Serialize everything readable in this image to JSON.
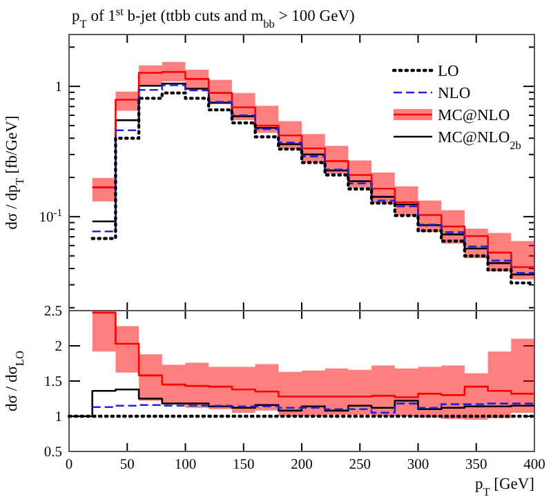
{
  "chart_data": [
    {
      "type": "step",
      "title": "p$_{T}$ of 1$^{st}$ b-jet (ttbb cuts and m$_{bb}$ > 100 GeV)",
      "ylabel": "dσ / dp$_{T}$ [fb/GeV]",
      "log": true,
      "legend": "top right",
      "tick_labels": "y",
      "x": [
        20,
        40,
        60,
        80,
        100,
        120,
        140,
        160,
        180,
        200,
        220,
        240,
        260,
        280,
        300,
        320,
        340,
        360,
        380,
        400
      ],
      "xlim": [
        0,
        400
      ],
      "xticks": [
        0,
        50,
        100,
        150,
        200,
        250,
        300,
        350,
        400
      ],
      "ylim": [
        0.019,
        2.5
      ],
      "yticks": [
        {
          "value": 0.02,
          "label": null
        },
        {
          "value": 0.03,
          "label": null
        },
        {
          "value": 0.04,
          "label": null
        },
        {
          "value": 0.05,
          "label": null
        },
        {
          "value": 0.06,
          "label": null
        },
        {
          "value": 0.07,
          "label": null
        },
        {
          "value": 0.08,
          "label": null
        },
        {
          "value": 0.09,
          "label": null
        },
        {
          "value": 0.1,
          "label": "10$^{-1}$"
        },
        {
          "value": 0.2,
          "label": null
        },
        {
          "value": 0.3,
          "label": null
        },
        {
          "value": 0.4,
          "label": null
        },
        {
          "value": 0.5,
          "label": null
        },
        {
          "value": 0.6,
          "label": null
        },
        {
          "value": 0.7,
          "label": null
        },
        {
          "value": 0.8,
          "label": null
        },
        {
          "value": 0.9,
          "label": null
        },
        {
          "value": 1,
          "label": "1"
        },
        {
          "value": 2,
          "label": null
        }
      ],
      "series": [
        {
          "name": "LO",
          "color": "#000000",
          "line_style": "dotted",
          "values": [
            0.068,
            0.4,
            0.81,
            0.89,
            0.81,
            0.66,
            0.525,
            0.41,
            0.33,
            0.26,
            0.209,
            0.163,
            0.127,
            0.102,
            0.078,
            0.065,
            0.05,
            0.039,
            0.031,
            0.031
          ]
        },
        {
          "name": "NLO",
          "color": "#2222dd",
          "line_style": "dashed",
          "values": [
            0.077,
            0.46,
            0.94,
            1.02,
            0.93,
            0.76,
            0.6,
            0.47,
            0.37,
            0.29,
            0.23,
            0.18,
            0.133,
            0.12,
            0.087,
            0.076,
            0.059,
            0.046,
            0.037,
            0.037
          ]
        },
        {
          "name": "MC@NLO",
          "color": "#ff0000",
          "line_style": "solid",
          "values": [
            0.168,
            0.79,
            1.27,
            1.29,
            1.14,
            0.89,
            0.69,
            0.5,
            0.42,
            0.334,
            0.267,
            0.209,
            0.164,
            0.129,
            0.103,
            0.084,
            0.071,
            0.053,
            0.041,
            0.041
          ],
          "lower": [
            0.131,
            0.65,
            1.0,
            1.09,
            0.94,
            0.73,
            0.55,
            0.44,
            0.33,
            0.26,
            0.213,
            0.166,
            0.127,
            0.102,
            0.076,
            0.062,
            0.048,
            0.038,
            0.033,
            0.033
          ],
          "upper": [
            0.198,
            0.91,
            1.45,
            1.54,
            1.34,
            1.12,
            0.89,
            0.71,
            0.54,
            0.43,
            0.35,
            0.27,
            0.218,
            0.171,
            0.133,
            0.112,
            0.081,
            0.075,
            0.065,
            0.065
          ]
        },
        {
          "name": "MC@NLO$_{2b}$",
          "color": "#000000",
          "line_style": "solid",
          "values": [
            0.092,
            0.55,
            1.01,
            1.05,
            0.96,
            0.75,
            0.59,
            0.48,
            0.36,
            0.3,
            0.226,
            0.187,
            0.142,
            0.124,
            0.086,
            0.073,
            0.057,
            0.044,
            0.036,
            0.036
          ]
        }
      ]
    },
    {
      "type": "step",
      "xlabel": "p$_{T}$ [GeV]",
      "ylabel": "dσ / dσ$_{LO}$",
      "x": [
        0,
        20,
        40,
        60,
        80,
        100,
        120,
        140,
        160,
        180,
        200,
        220,
        240,
        260,
        280,
        300,
        320,
        340,
        360,
        380,
        400
      ],
      "xlim": [
        0,
        400
      ],
      "xticks": [
        0,
        50,
        100,
        150,
        200,
        250,
        300,
        350,
        400
      ],
      "ylim": [
        0.5,
        2.5
      ],
      "yticks": [
        0.5,
        1,
        1.5,
        2,
        2.5
      ],
      "series": [
        {
          "color": "#000000",
          "line_style": "dotted",
          "values": [
            1,
            1,
            1,
            1,
            1,
            1,
            1,
            1,
            1,
            1,
            1,
            1,
            1,
            1,
            1,
            1,
            1,
            1,
            1,
            1,
            1
          ]
        },
        {
          "color": "#2222dd",
          "line_style": "dashed",
          "values": [
            null,
            1.13,
            1.15,
            1.16,
            1.15,
            1.15,
            1.15,
            1.14,
            1.14,
            1.12,
            1.12,
            1.1,
            1.1,
            1.05,
            1.18,
            1.12,
            1.17,
            1.17,
            1.18,
            1.18,
            1.18
          ]
        },
        {
          "color": "#ff0000",
          "line_style": "solid",
          "values": [
            null,
            2.47,
            2.03,
            1.58,
            1.45,
            1.43,
            1.42,
            1.38,
            1.35,
            1.28,
            1.28,
            1.28,
            1.28,
            1.29,
            1.27,
            1.32,
            1.3,
            1.42,
            1.36,
            1.32,
            1.32
          ],
          "lower": [
            null,
            1.92,
            1.62,
            1.22,
            1.17,
            1.12,
            1.1,
            1.05,
            1.08,
            1.0,
            1.0,
            1.02,
            1.02,
            1.0,
            1.0,
            0.98,
            0.96,
            0.95,
            0.97,
            1.05,
            1.05
          ],
          "upper": [
            null,
            2.5,
            2.28,
            1.88,
            1.73,
            1.76,
            1.7,
            1.7,
            1.74,
            1.63,
            1.65,
            1.68,
            1.66,
            1.72,
            1.68,
            1.7,
            1.72,
            1.61,
            1.92,
            2.1,
            2.1
          ]
        },
        {
          "color": "#000000",
          "line_style": "solid",
          "values": [
            1,
            1.36,
            1.38,
            1.25,
            1.18,
            1.18,
            1.14,
            1.12,
            1.16,
            1.08,
            1.14,
            1.08,
            1.15,
            1.12,
            1.22,
            1.1,
            1.12,
            1.14,
            1.14,
            1.15,
            1.15
          ]
        }
      ]
    }
  ]
}
